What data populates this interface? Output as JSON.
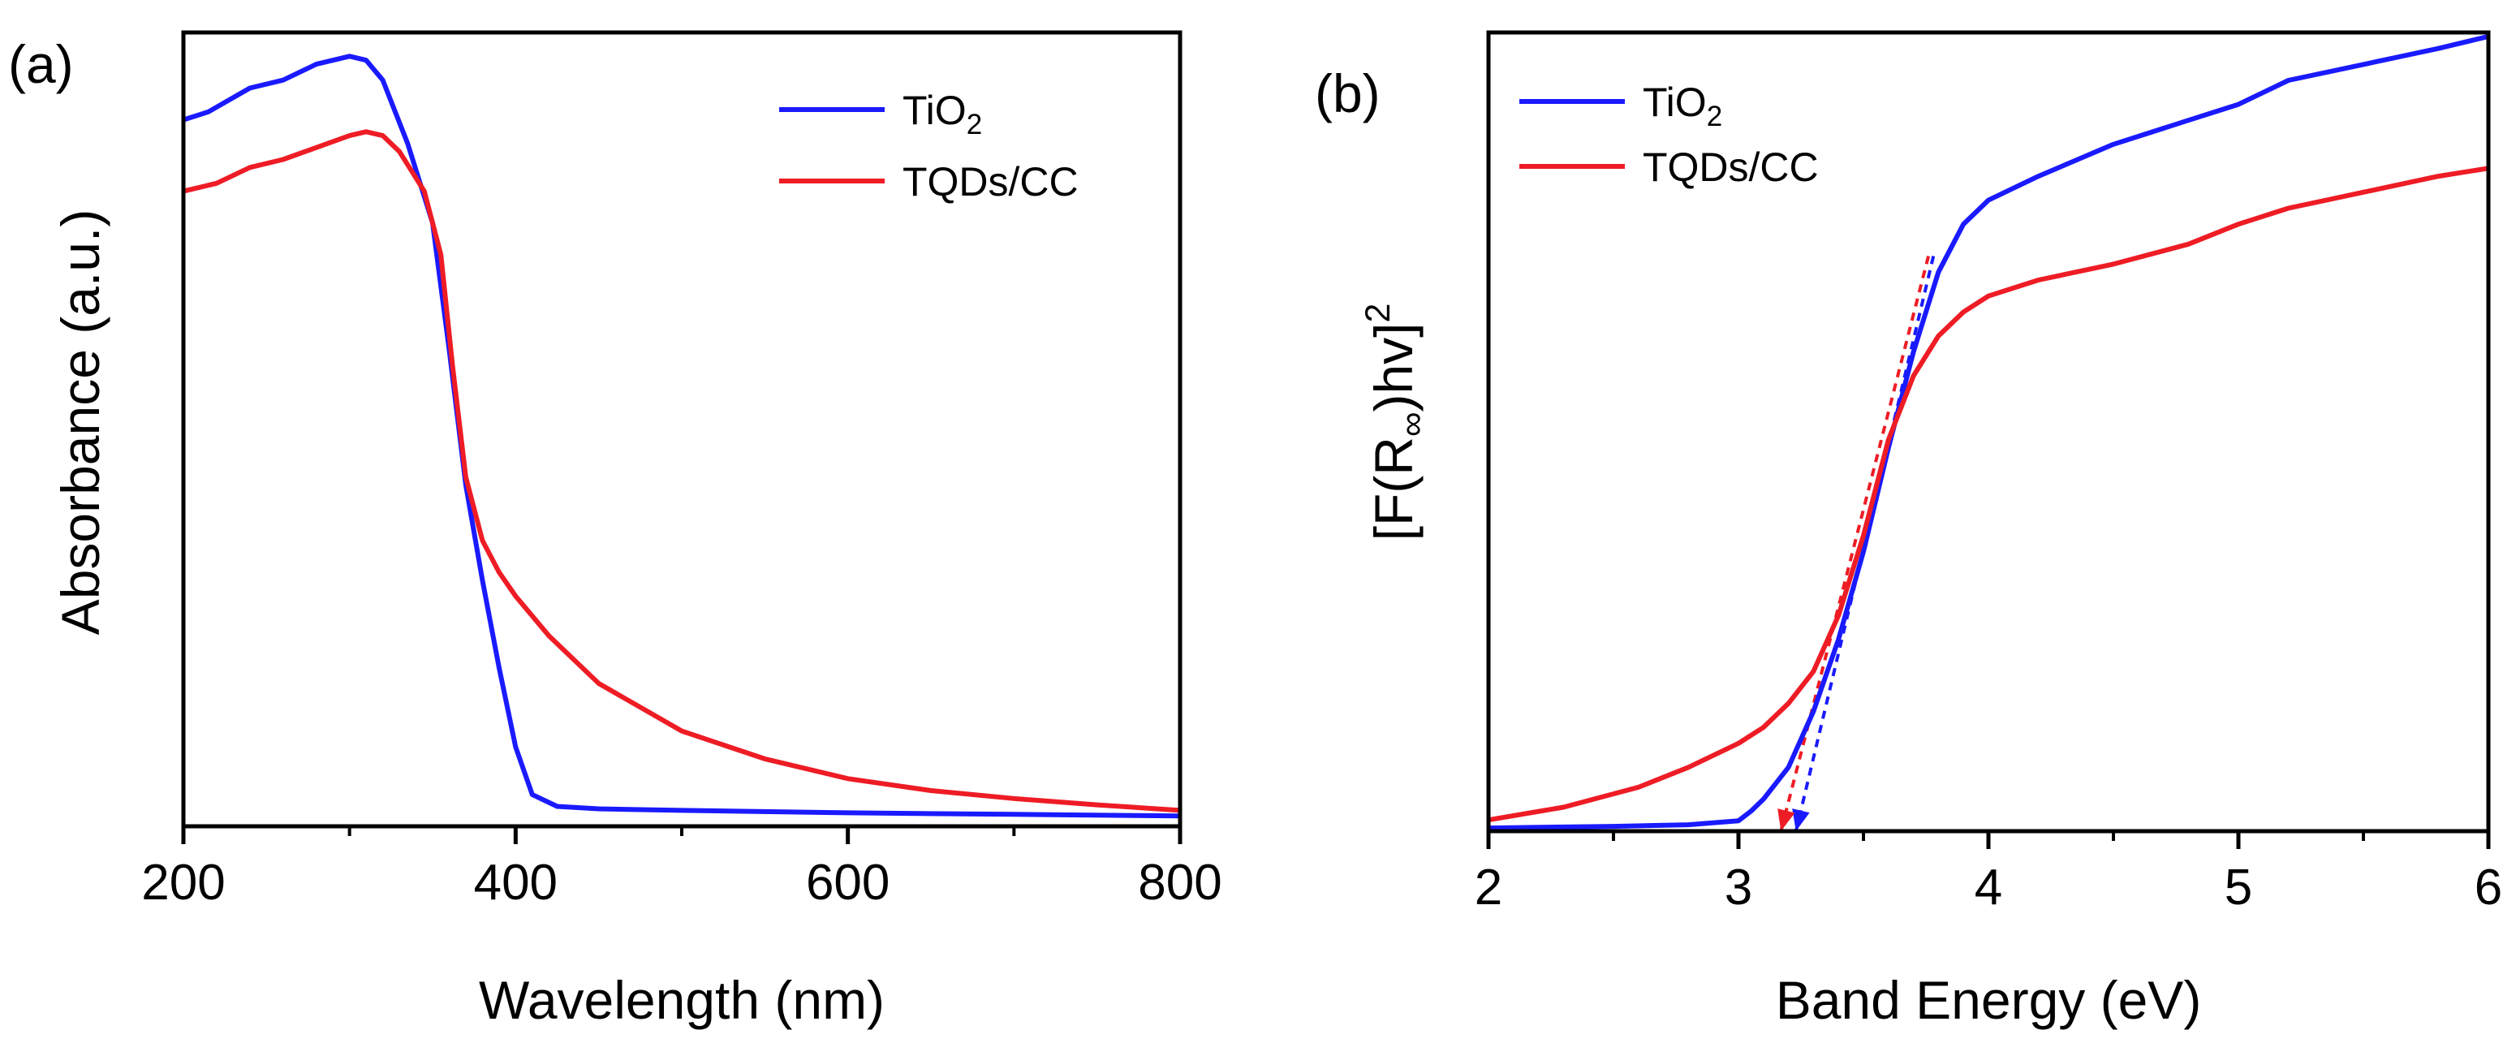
{
  "figure": {
    "panels": [
      "(a)",
      "(b)"
    ]
  },
  "chart_data": [
    {
      "type": "line",
      "panel_label": "(a)",
      "xlabel": "Wavelength (nm)",
      "ylabel": "Absorbance (a.u.)",
      "xlim": [
        200,
        800
      ],
      "ylim": [
        0,
        1
      ],
      "xticks": [
        "200",
        "400",
        "600",
        "800"
      ],
      "y_tick_labels_shown": false,
      "legend": {
        "location": "top-right",
        "entries": [
          "TiO2",
          "TQDs/CC"
        ]
      },
      "series": [
        {
          "name": "TiO2",
          "color": "#1a1aff",
          "points": [
            [
              200,
              0.89
            ],
            [
              215,
              0.9
            ],
            [
              240,
              0.93
            ],
            [
              260,
              0.94
            ],
            [
              280,
              0.96
            ],
            [
              300,
              0.97
            ],
            [
              310,
              0.965
            ],
            [
              320,
              0.94
            ],
            [
              335,
              0.86
            ],
            [
              350,
              0.76
            ],
            [
              360,
              0.6
            ],
            [
              370,
              0.43
            ],
            [
              380,
              0.31
            ],
            [
              390,
              0.2
            ],
            [
              400,
              0.1
            ],
            [
              410,
              0.04
            ],
            [
              425,
              0.025
            ],
            [
              450,
              0.022
            ],
            [
              500,
              0.02
            ],
            [
              600,
              0.017
            ],
            [
              700,
              0.015
            ],
            [
              800,
              0.013
            ]
          ]
        },
        {
          "name": "TQDs/CC",
          "color": "#ee1c25",
          "points": [
            [
              200,
              0.8
            ],
            [
              220,
              0.81
            ],
            [
              240,
              0.83
            ],
            [
              260,
              0.84
            ],
            [
              280,
              0.855
            ],
            [
              300,
              0.87
            ],
            [
              310,
              0.875
            ],
            [
              320,
              0.87
            ],
            [
              330,
              0.85
            ],
            [
              345,
              0.8
            ],
            [
              355,
              0.72
            ],
            [
              362,
              0.58
            ],
            [
              370,
              0.44
            ],
            [
              380,
              0.36
            ],
            [
              390,
              0.32
            ],
            [
              400,
              0.29
            ],
            [
              420,
              0.24
            ],
            [
              450,
              0.18
            ],
            [
              500,
              0.12
            ],
            [
              550,
              0.085
            ],
            [
              600,
              0.06
            ],
            [
              650,
              0.045
            ],
            [
              700,
              0.035
            ],
            [
              750,
              0.027
            ],
            [
              800,
              0.02
            ]
          ]
        }
      ]
    },
    {
      "type": "line",
      "panel_label": "(b)",
      "xlabel": "Band Energy (eV)",
      "ylabel": "[F(R∞)hv]2",
      "xlim": [
        2,
        6
      ],
      "ylim": [
        0,
        1
      ],
      "xticks": [
        "2",
        "3",
        "4",
        "5",
        "6"
      ],
      "y_tick_labels_shown": false,
      "legend": {
        "location": "top-left",
        "entries": [
          "TiO2",
          "TQDs/CC"
        ]
      },
      "series": [
        {
          "name": "TiO2",
          "color": "#1a1aff",
          "points": [
            [
              2.0,
              0.004
            ],
            [
              2.5,
              0.006
            ],
            [
              2.8,
              0.008
            ],
            [
              3.0,
              0.013
            ],
            [
              3.05,
              0.025
            ],
            [
              3.1,
              0.04
            ],
            [
              3.2,
              0.08
            ],
            [
              3.3,
              0.15
            ],
            [
              3.4,
              0.24
            ],
            [
              3.5,
              0.35
            ],
            [
              3.6,
              0.48
            ],
            [
              3.7,
              0.6
            ],
            [
              3.8,
              0.7
            ],
            [
              3.9,
              0.76
            ],
            [
              4.0,
              0.79
            ],
            [
              4.2,
              0.82
            ],
            [
              4.5,
              0.86
            ],
            [
              4.8,
              0.89
            ],
            [
              5.0,
              0.91
            ],
            [
              5.2,
              0.94
            ],
            [
              5.5,
              0.96
            ],
            [
              5.8,
              0.98
            ],
            [
              6.0,
              0.995
            ]
          ]
        },
        {
          "name": "TQDs/CC",
          "color": "#ee1c25",
          "points": [
            [
              2.0,
              0.014
            ],
            [
              2.3,
              0.03
            ],
            [
              2.6,
              0.055
            ],
            [
              2.8,
              0.08
            ],
            [
              3.0,
              0.11
            ],
            [
              3.1,
              0.13
            ],
            [
              3.2,
              0.16
            ],
            [
              3.3,
              0.2
            ],
            [
              3.4,
              0.27
            ],
            [
              3.5,
              0.37
            ],
            [
              3.6,
              0.49
            ],
            [
              3.7,
              0.57
            ],
            [
              3.8,
              0.62
            ],
            [
              3.9,
              0.65
            ],
            [
              4.0,
              0.67
            ],
            [
              4.2,
              0.69
            ],
            [
              4.5,
              0.71
            ],
            [
              4.8,
              0.735
            ],
            [
              5.0,
              0.76
            ],
            [
              5.2,
              0.78
            ],
            [
              5.5,
              0.8
            ],
            [
              5.8,
              0.82
            ],
            [
              6.0,
              0.83
            ]
          ]
        }
      ],
      "tangent_lines": [
        {
          "series": "TiO2",
          "color": "#1a1aff",
          "x": [
            3.78,
            3.23
          ],
          "y": [
            0.72,
            0.0
          ]
        },
        {
          "series": "TQDs/CC",
          "color": "#ee1c25",
          "x": [
            3.76,
            3.17
          ],
          "y": [
            0.72,
            0.0
          ]
        }
      ]
    }
  ]
}
